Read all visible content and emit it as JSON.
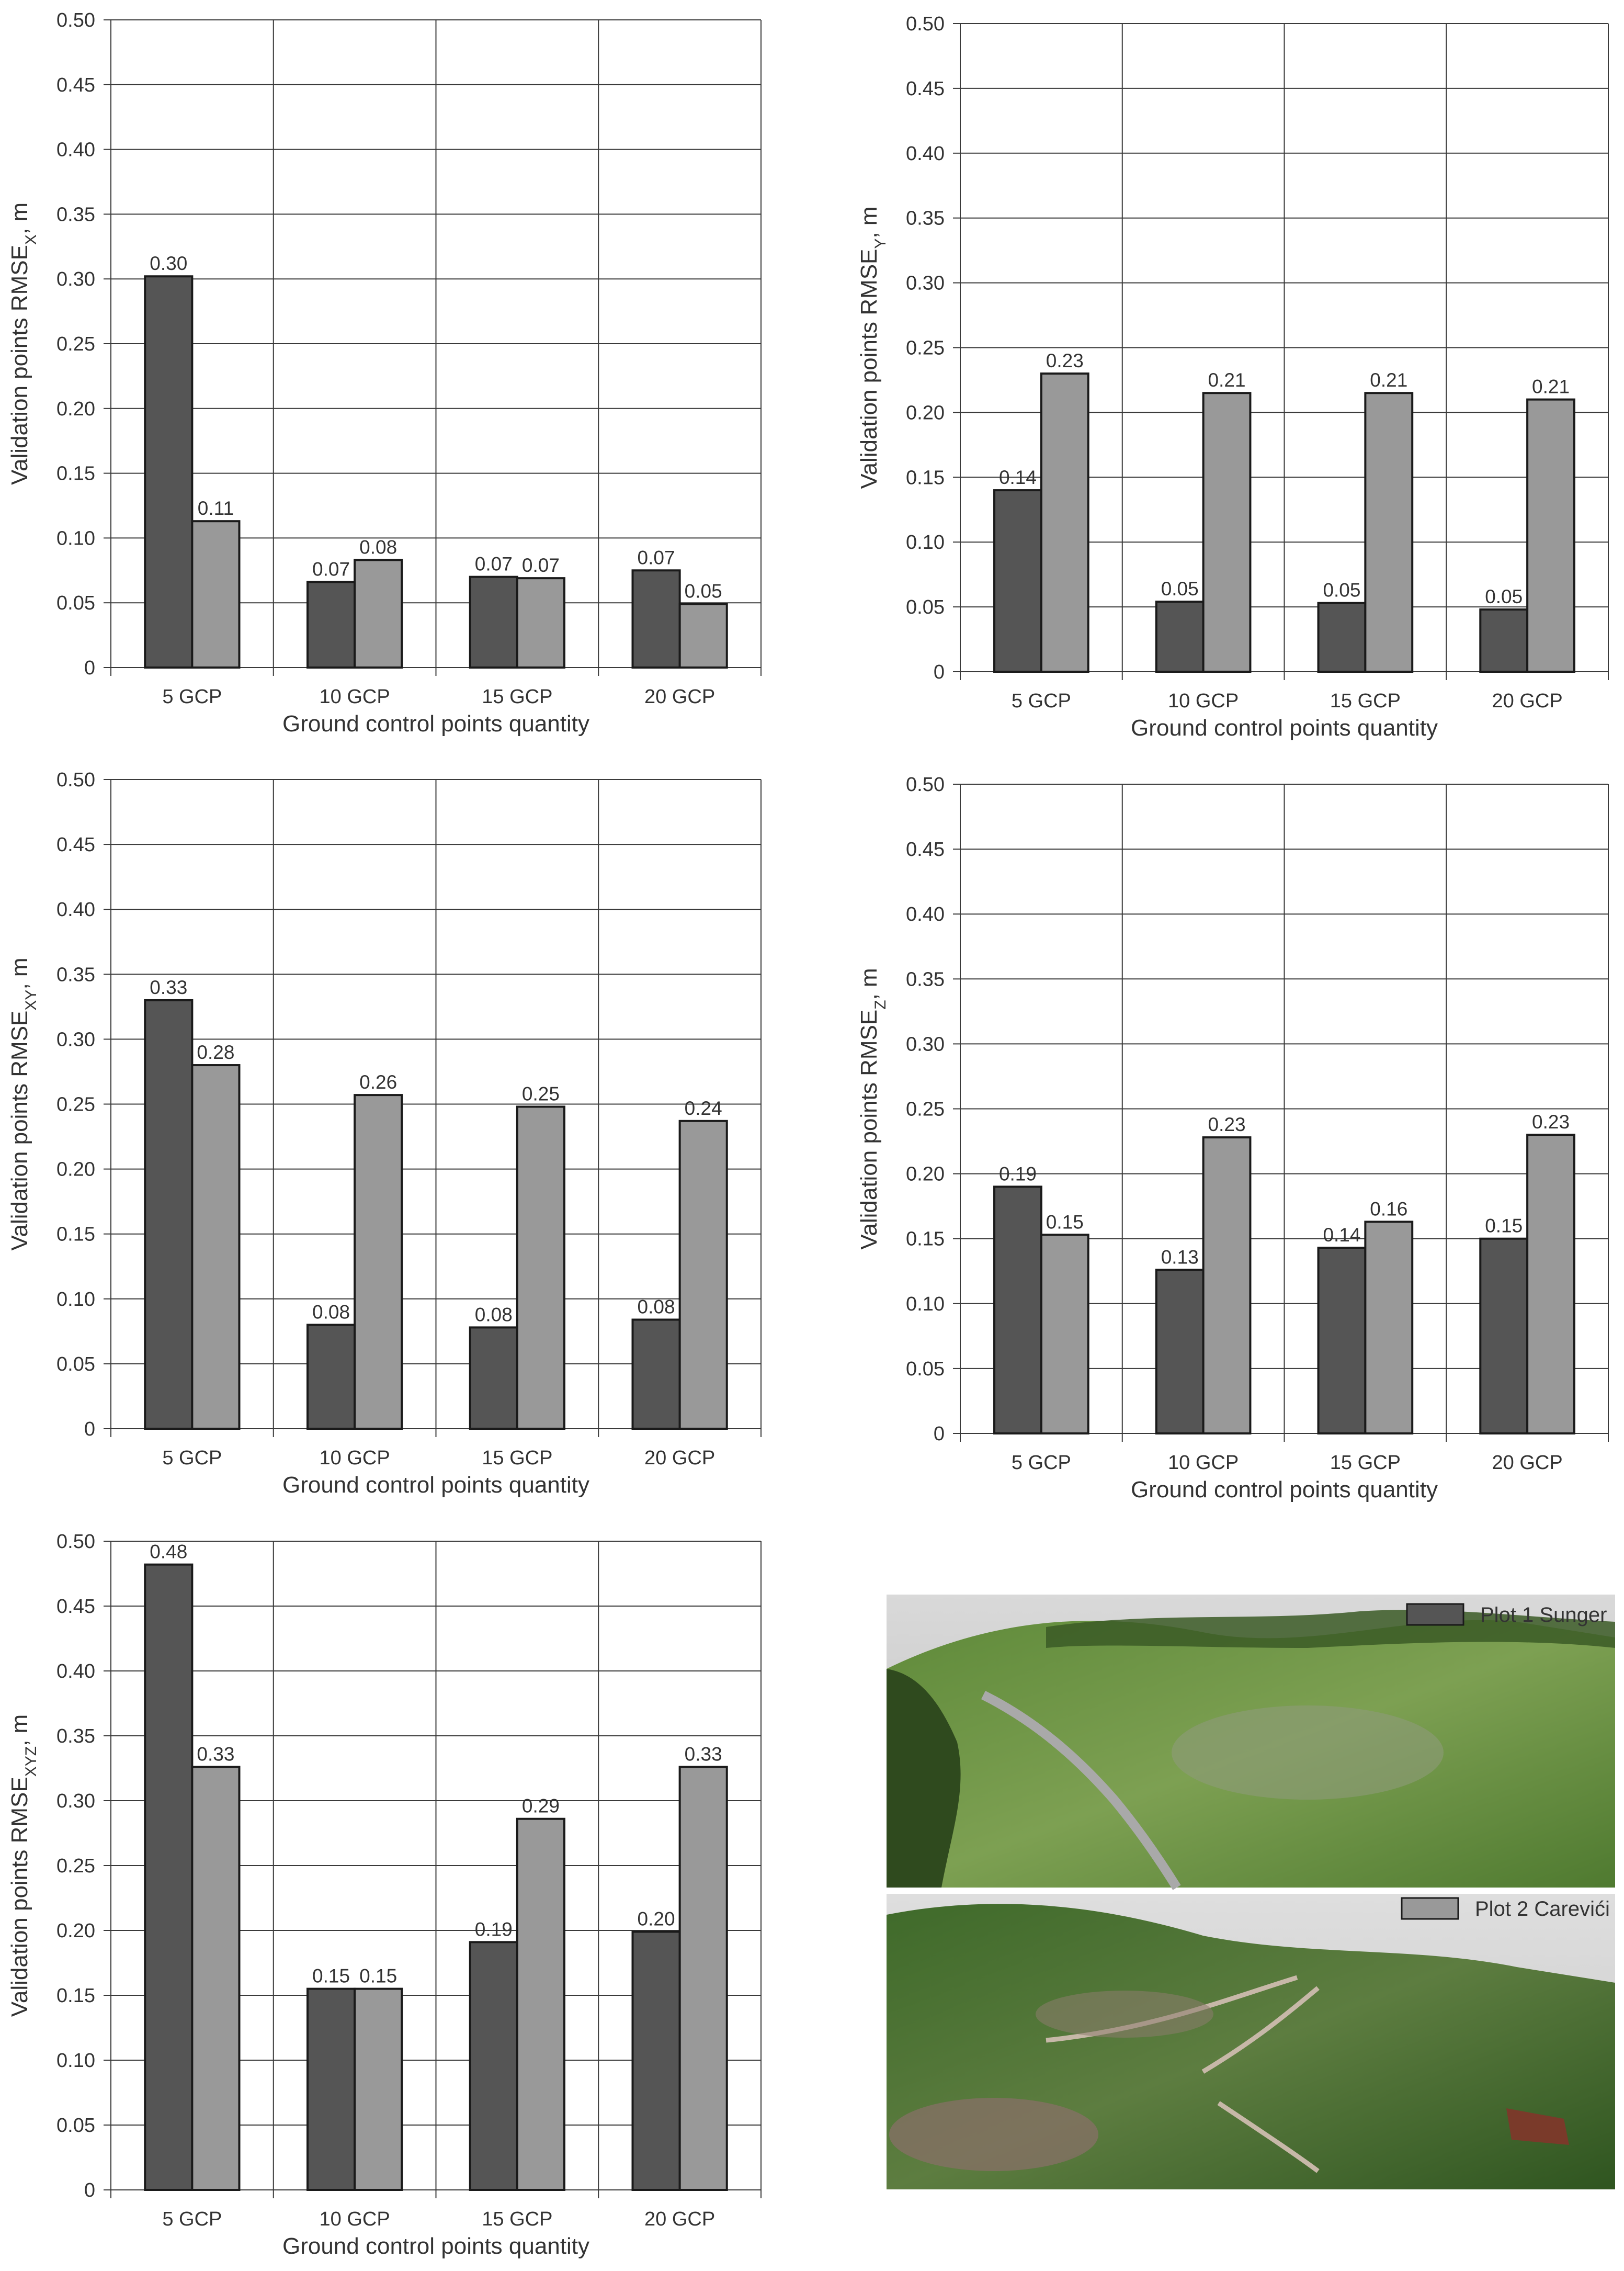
{
  "colors": {
    "plot1": "#555555",
    "plot2": "#999999",
    "grid": "#3a3a3a",
    "text": "#333333"
  },
  "legend": {
    "items": [
      {
        "label": "Plot 1 Sunger",
        "color": "#555555"
      },
      {
        "label": "Plot 2 Carevići",
        "color": "#999999"
      }
    ],
    "placement": "overlay-on-photos"
  },
  "photos": [
    {
      "kind": "3D-model-render"
    },
    {
      "kind": "3D-model-render"
    }
  ],
  "chart_data": [
    {
      "type": "bar",
      "categories": [
        "5 GCP",
        "10 GCP",
        "15 GCP",
        "20 GCP"
      ],
      "series": [
        {
          "name": "Plot 1 Sunger",
          "values": [
            0.302,
            0.066,
            0.07,
            0.075
          ],
          "labels": [
            "0.30",
            "0.07",
            "0.07",
            "0.07"
          ]
        },
        {
          "name": "Plot 2 Carevići",
          "values": [
            0.113,
            0.083,
            0.069,
            0.049
          ],
          "labels": [
            "0.11",
            "0.08",
            "0.07",
            "0.05"
          ]
        }
      ],
      "ylabel_main": "Validation points RMSE",
      "ylabel_sub": "X",
      "ylabel_unit": ", m",
      "xlabel": "Ground control points quantity",
      "ylim": [
        0,
        0.5
      ],
      "yticks": [
        "0",
        "0.05",
        "0.10",
        "0.15",
        "0.20",
        "0.25",
        "0.30",
        "0.35",
        "0.40",
        "0.45",
        "0.50"
      ],
      "grid": true
    },
    {
      "type": "bar",
      "categories": [
        "5 GCP",
        "10 GCP",
        "15 GCP",
        "20 GCP"
      ],
      "series": [
        {
          "name": "Plot 1 Sunger",
          "values": [
            0.14,
            0.054,
            0.053,
            0.048
          ],
          "labels": [
            "0.14",
            "0.05",
            "0.05",
            "0.05"
          ]
        },
        {
          "name": "Plot 2 Carevići",
          "values": [
            0.23,
            0.215,
            0.215,
            0.21
          ],
          "labels": [
            "0.23",
            "0.21",
            "0.21",
            "0.21"
          ]
        }
      ],
      "ylabel_main": "Validation points RMSE",
      "ylabel_sub": "Y",
      "ylabel_unit": ", m",
      "xlabel": "Ground control points quantity",
      "ylim": [
        0,
        0.5
      ],
      "yticks": [
        "0",
        "0.05",
        "0.10",
        "0.15",
        "0.20",
        "0.25",
        "0.30",
        "0.35",
        "0.40",
        "0.45",
        "0.50"
      ],
      "grid": true
    },
    {
      "type": "bar",
      "categories": [
        "5 GCP",
        "10 GCP",
        "15 GCP",
        "20 GCP"
      ],
      "series": [
        {
          "name": "Plot 1 Sunger",
          "values": [
            0.33,
            0.08,
            0.078,
            0.084
          ],
          "labels": [
            "0.33",
            "0.08",
            "0.08",
            "0.08"
          ]
        },
        {
          "name": "Plot 2 Carevići",
          "values": [
            0.28,
            0.257,
            0.248,
            0.237
          ],
          "labels": [
            "0.28",
            "0.26",
            "0.25",
            "0.24"
          ]
        }
      ],
      "ylabel_main": "Validation points RMSE",
      "ylabel_sub": "XY",
      "ylabel_unit": ", m",
      "xlabel": "Ground control points quantity",
      "ylim": [
        0,
        0.5
      ],
      "yticks": [
        "0",
        "0.05",
        "0.10",
        "0.15",
        "0.20",
        "0.25",
        "0.30",
        "0.35",
        "0.40",
        "0.45",
        "0.50"
      ],
      "grid": true
    },
    {
      "type": "bar",
      "categories": [
        "5 GCP",
        "10 GCP",
        "15 GCP",
        "20 GCP"
      ],
      "series": [
        {
          "name": "Plot 1 Sunger",
          "values": [
            0.19,
            0.126,
            0.143,
            0.15
          ],
          "labels": [
            "0.19",
            "0.13",
            "0.14",
            "0.15"
          ]
        },
        {
          "name": "Plot 2 Carevići",
          "values": [
            0.153,
            0.228,
            0.163,
            0.23
          ],
          "labels": [
            "0.15",
            "0.23",
            "0.16",
            "0.23"
          ]
        }
      ],
      "ylabel_main": "Validation points RMSE",
      "ylabel_sub": "Z",
      "ylabel_unit": ", m",
      "xlabel": "Ground control points quantity",
      "ylim": [
        0,
        0.5
      ],
      "yticks": [
        "0",
        "0.05",
        "0.10",
        "0.15",
        "0.20",
        "0.25",
        "0.30",
        "0.35",
        "0.40",
        "0.45",
        "0.50"
      ],
      "grid": true
    },
    {
      "type": "bar",
      "categories": [
        "5 GCP",
        "10 GCP",
        "15 GCP",
        "20 GCP"
      ],
      "series": [
        {
          "name": "Plot 1 Sunger",
          "values": [
            0.482,
            0.155,
            0.191,
            0.199
          ],
          "labels": [
            "0.48",
            "0.15",
            "0.19",
            "0.20"
          ]
        },
        {
          "name": "Plot 2 Carevići",
          "values": [
            0.326,
            0.155,
            0.286,
            0.326
          ],
          "labels": [
            "0.33",
            "0.15",
            "0.29",
            "0.33"
          ]
        }
      ],
      "ylabel_main": "Validation points RMSE",
      "ylabel_sub": "XYZ",
      "ylabel_unit": ", m",
      "xlabel": "Ground control points quantity",
      "ylim": [
        0,
        0.5
      ],
      "yticks": [
        "0",
        "0.05",
        "0.10",
        "0.15",
        "0.20",
        "0.25",
        "0.30",
        "0.35",
        "0.40",
        "0.45",
        "0.50"
      ],
      "grid": true
    }
  ]
}
